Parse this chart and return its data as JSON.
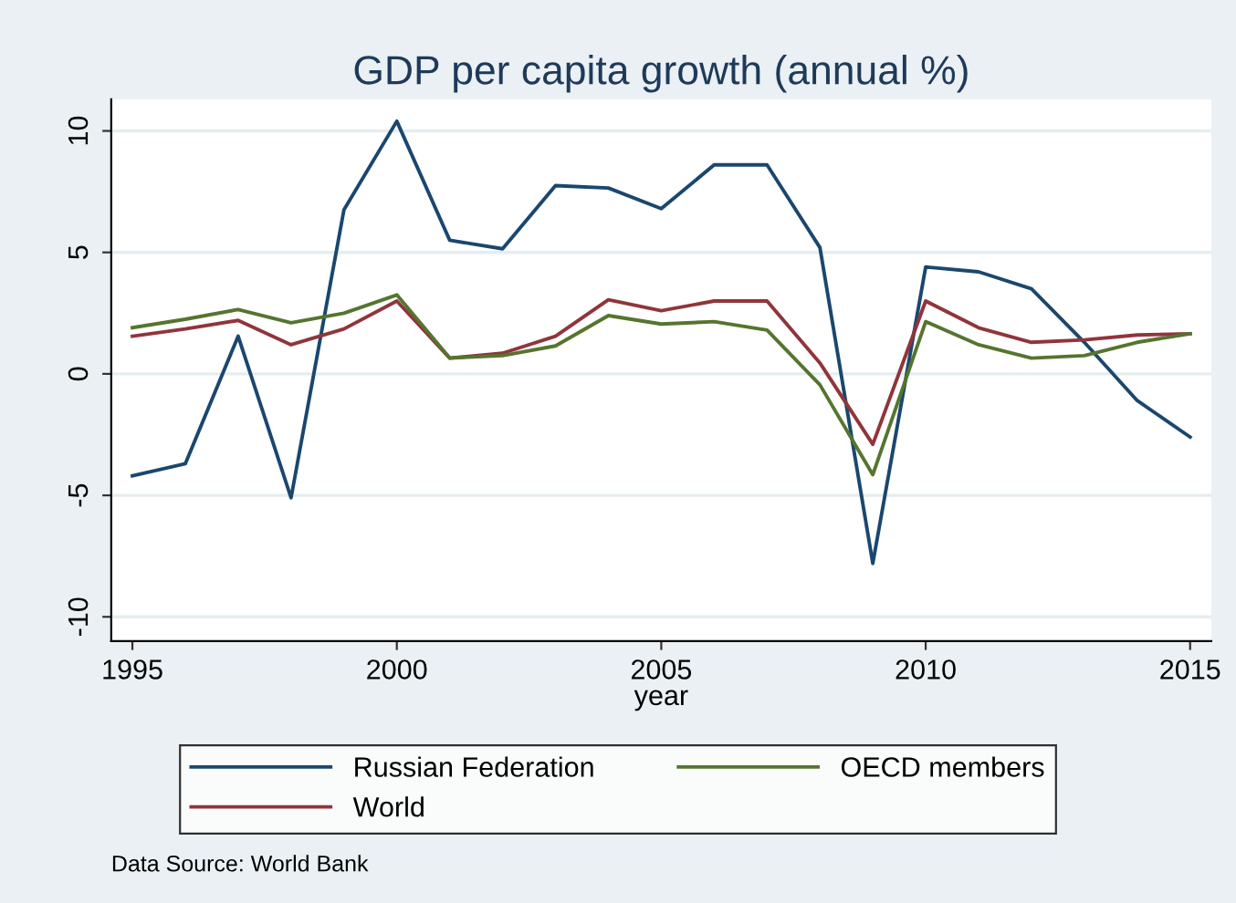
{
  "chart_data": {
    "type": "line",
    "title": "GDP per capita growth (annual %)",
    "xlabel": "year",
    "x": [
      1995,
      1996,
      1997,
      1998,
      1999,
      2000,
      2001,
      2002,
      2003,
      2004,
      2005,
      2006,
      2007,
      2008,
      2009,
      2010,
      2011,
      2012,
      2013,
      2014,
      2015
    ],
    "series": [
      {
        "name": "Russian Federation",
        "color": "#1a476f",
        "values": [
          -4.2,
          -3.7,
          1.55,
          -5.1,
          6.75,
          10.4,
          5.5,
          5.15,
          7.75,
          7.65,
          6.8,
          8.6,
          8.6,
          5.2,
          -7.8,
          4.4,
          4.2,
          3.5,
          1.3,
          -1.1,
          -2.6
        ]
      },
      {
        "name": "World",
        "color": "#90353b",
        "values": [
          1.55,
          1.85,
          2.2,
          1.2,
          1.85,
          3.0,
          0.65,
          0.85,
          1.55,
          3.05,
          2.6,
          3.0,
          3.0,
          0.45,
          -2.9,
          3.0,
          1.9,
          1.3,
          1.4,
          1.6,
          1.65
        ]
      },
      {
        "name": "OECD members",
        "color": "#55752f",
        "values": [
          1.9,
          2.25,
          2.65,
          2.1,
          2.5,
          3.25,
          0.65,
          0.75,
          1.15,
          2.4,
          2.05,
          2.15,
          1.8,
          -0.45,
          -4.15,
          2.15,
          1.2,
          0.65,
          0.75,
          1.3,
          1.65
        ]
      }
    ],
    "xlim": [
      1994.6,
      2015.4
    ],
    "xticks": [
      1995,
      2000,
      2005,
      2010,
      2015
    ],
    "ylim": [
      -11,
      11.3
    ],
    "yticks": [
      -10,
      -5,
      0,
      5,
      10
    ],
    "grid": "y",
    "legend": "bottom",
    "marker": "none",
    "line_style": "solid",
    "annotations": [
      "Data Source: World Bank"
    ]
  }
}
